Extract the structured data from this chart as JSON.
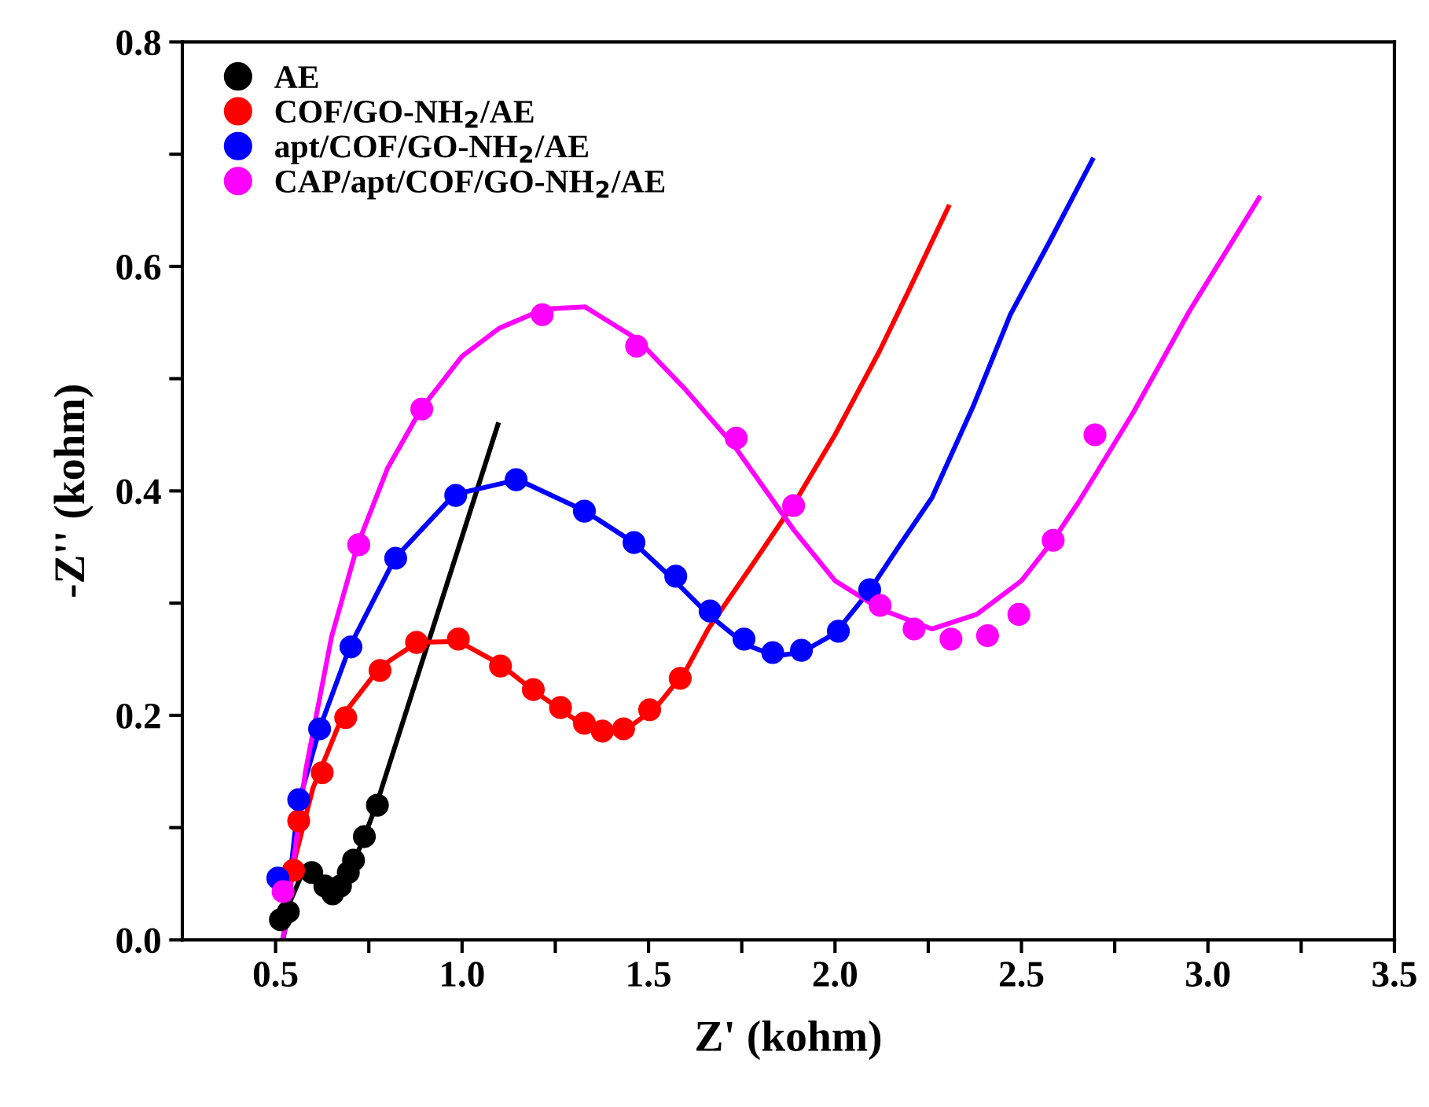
{
  "chart_data": {
    "type": "scatter",
    "xlabel": "Z' (kohm)",
    "ylabel": "-Z'' (kohm)",
    "xlim": [
      0.25,
      3.5
    ],
    "ylim": [
      0,
      0.8
    ],
    "xticks": [
      0.5,
      {
        "value": 0.75,
        "label": null
      },
      {
        "value": 1,
        "label": "1.0"
      },
      {
        "value": 1.25,
        "label": null
      },
      1.5,
      {
        "value": 1.75,
        "label": null
      },
      {
        "value": 2,
        "label": "2.0"
      },
      {
        "value": 2.25,
        "label": null
      },
      2.5,
      {
        "value": 2.75,
        "label": null
      },
      {
        "value": 3,
        "label": "3.0"
      },
      {
        "value": 3.25,
        "label": null
      },
      3.5
    ],
    "yticks": [
      {
        "value": 0,
        "label": "0.0"
      },
      {
        "value": 0.1,
        "label": null
      },
      0.2,
      {
        "value": 0.3,
        "label": null
      },
      0.4,
      {
        "value": 0.5,
        "label": null
      },
      0.6,
      {
        "value": 0.7,
        "label": null
      },
      0.8
    ],
    "legend": "top left",
    "series": [
      {
        "type": "line",
        "color": "#000000",
        "x": [
          0.52,
          0.54,
          0.57,
          0.61,
          0.65,
          0.69,
          0.73,
          0.77,
          1.096
        ],
        "values": [
          0.0,
          0.035,
          0.058,
          0.055,
          0.045,
          0.058,
          0.085,
          0.12,
          0.459
        ]
      },
      {
        "type": "line",
        "color": "#ff0000",
        "x": [
          0.52,
          0.55,
          0.6,
          0.68,
          0.78,
          0.88,
          0.99,
          1.1,
          1.2,
          1.3,
          1.38,
          1.45,
          1.52,
          1.6,
          1.66,
          1.78,
          1.9,
          2.0,
          2.12,
          2.2,
          2.304
        ],
        "values": [
          0.0,
          0.07,
          0.135,
          0.2,
          0.243,
          0.265,
          0.266,
          0.246,
          0.22,
          0.197,
          0.187,
          0.19,
          0.207,
          0.24,
          0.277,
          0.335,
          0.394,
          0.45,
          0.525,
          0.58,
          0.653
        ]
      },
      {
        "type": "line",
        "color": "#0000ff",
        "x": [
          0.52,
          0.56,
          0.62,
          0.7,
          0.82,
          0.98,
          1.15,
          1.33,
          1.46,
          1.57,
          1.66,
          1.76,
          1.84,
          1.91,
          2.0,
          2.09,
          2.17,
          2.26,
          2.37,
          2.47,
          2.58,
          2.69
        ],
        "values": [
          0.0,
          0.12,
          0.19,
          0.262,
          0.34,
          0.397,
          0.41,
          0.382,
          0.354,
          0.32,
          0.29,
          0.263,
          0.253,
          0.256,
          0.273,
          0.31,
          0.35,
          0.394,
          0.475,
          0.557,
          0.625,
          0.695
        ]
      },
      {
        "type": "line",
        "color": "#ff00ff",
        "x": [
          0.52,
          0.58,
          0.65,
          0.72,
          0.8,
          0.89,
          1.0,
          1.1,
          1.22,
          1.33,
          1.47,
          1.6,
          1.73,
          1.89,
          2.0,
          2.12,
          2.26,
          2.38,
          2.5,
          2.585,
          2.655,
          2.8,
          2.95,
          3.137
        ],
        "values": [
          0.0,
          0.15,
          0.27,
          0.352,
          0.42,
          0.473,
          0.52,
          0.545,
          0.562,
          0.564,
          0.535,
          0.49,
          0.44,
          0.365,
          0.32,
          0.295,
          0.277,
          0.29,
          0.32,
          0.356,
          0.391,
          0.47,
          0.56,
          0.661
        ]
      },
      {
        "marker": "circle",
        "name": "AE",
        "color": "#000000",
        "x": [
          0.513,
          0.534,
          0.597,
          0.632,
          0.653,
          0.674,
          0.695,
          0.709,
          0.738,
          0.773
        ],
        "values": [
          0.018,
          0.025,
          0.06,
          0.048,
          0.041,
          0.048,
          0.06,
          0.071,
          0.092,
          0.12
        ]
      },
      {
        "marker": "circle",
        "name": "COF/GO-NH$_{2}$/AE",
        "color": "#ff0000",
        "x": [
          0.548,
          0.562,
          0.625,
          0.688,
          0.78,
          0.878,
          0.99,
          1.103,
          1.191,
          1.264,
          1.328,
          1.376,
          1.433,
          1.503,
          1.585
        ],
        "values": [
          0.062,
          0.106,
          0.149,
          0.198,
          0.24,
          0.265,
          0.268,
          0.244,
          0.223,
          0.207,
          0.193,
          0.186,
          0.188,
          0.205,
          0.233
        ]
      },
      {
        "marker": "circle",
        "name": "apt/COF/GO-NH$_{2}$/AE",
        "color": "#0000ff",
        "x": [
          0.506,
          0.562,
          0.618,
          0.702,
          0.822,
          0.983,
          1.145,
          1.328,
          1.461,
          1.573,
          1.665,
          1.756,
          1.833,
          1.91,
          2.009,
          2.093
        ],
        "values": [
          0.055,
          0.125,
          0.188,
          0.261,
          0.34,
          0.396,
          0.41,
          0.382,
          0.354,
          0.324,
          0.293,
          0.268,
          0.256,
          0.258,
          0.275,
          0.312
        ]
      },
      {
        "marker": "circle",
        "name": "CAP/apt/COF/GO-NH$_{2}$/AE",
        "color": "#ff00ff",
        "x": [
          0.52,
          0.723,
          0.892,
          1.215,
          1.468,
          1.735,
          1.889,
          2.121,
          2.212,
          2.311,
          2.409,
          2.493,
          2.585,
          2.697
        ],
        "values": [
          0.043,
          0.352,
          0.473,
          0.557,
          0.529,
          0.447,
          0.387,
          0.298,
          0.277,
          0.268,
          0.271,
          0.29,
          0.356,
          0.45
        ]
      }
    ]
  }
}
